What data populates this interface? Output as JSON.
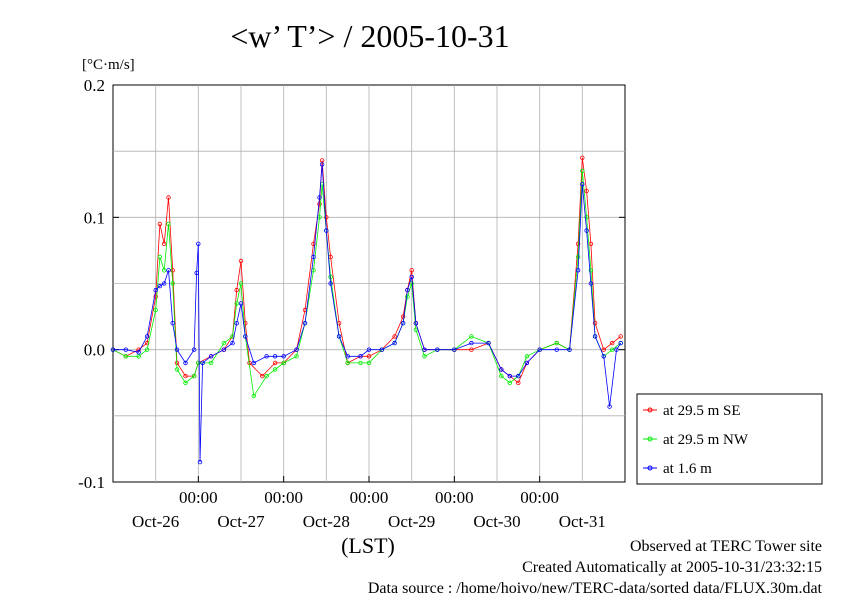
{
  "chart_data": {
    "type": "line",
    "title": "<w’ T’> / 2005-10-31",
    "ylabel": "[°C·m/s]",
    "xlabel": "(LST)",
    "ylim": [
      -0.1,
      0.2
    ],
    "y_ticks": [
      "0.2",
      "0.1",
      "0.0",
      "-0.1"
    ],
    "x_time_labels": [
      "00:00",
      "00:00",
      "00:00",
      "00:00",
      "00:00"
    ],
    "x_date_labels": [
      "Oct-26",
      "Oct-27",
      "Oct-28",
      "Oct-29",
      "Oct-30",
      "Oct-31"
    ],
    "xlim_days": [
      25.0,
      31.0
    ],
    "grid": true,
    "legend_position": "right",
    "series": [
      {
        "name": "at 29.5 m SE",
        "color": "#ff0000",
        "points": [
          [
            25.0,
            0.0
          ],
          [
            25.15,
            -0.005
          ],
          [
            25.3,
            0.0
          ],
          [
            25.4,
            0.005
          ],
          [
            25.5,
            0.04
          ],
          [
            25.55,
            0.095
          ],
          [
            25.6,
            0.08
          ],
          [
            25.65,
            0.115
          ],
          [
            25.7,
            0.06
          ],
          [
            25.75,
            -0.01
          ],
          [
            25.85,
            -0.02
          ],
          [
            25.95,
            -0.02
          ],
          [
            26.0,
            -0.01
          ],
          [
            26.15,
            -0.005
          ],
          [
            26.3,
            0.0
          ],
          [
            26.4,
            0.01
          ],
          [
            26.45,
            0.045
          ],
          [
            26.5,
            0.067
          ],
          [
            26.55,
            0.02
          ],
          [
            26.6,
            -0.01
          ],
          [
            26.75,
            -0.02
          ],
          [
            26.9,
            -0.01
          ],
          [
            27.0,
            -0.01
          ],
          [
            27.15,
            0.0
          ],
          [
            27.25,
            0.03
          ],
          [
            27.35,
            0.08
          ],
          [
            27.42,
            0.11
          ],
          [
            27.45,
            0.143
          ],
          [
            27.5,
            0.1
          ],
          [
            27.55,
            0.07
          ],
          [
            27.65,
            0.02
          ],
          [
            27.75,
            -0.01
          ],
          [
            27.9,
            -0.005
          ],
          [
            28.0,
            -0.005
          ],
          [
            28.15,
            0.0
          ],
          [
            28.3,
            0.01
          ],
          [
            28.4,
            0.025
          ],
          [
            28.45,
            0.045
          ],
          [
            28.5,
            0.06
          ],
          [
            28.55,
            0.02
          ],
          [
            28.65,
            0.0
          ],
          [
            28.8,
            0.0
          ],
          [
            29.0,
            0.0
          ],
          [
            29.2,
            0.0
          ],
          [
            29.4,
            0.005
          ],
          [
            29.55,
            -0.015
          ],
          [
            29.65,
            -0.02
          ],
          [
            29.75,
            -0.025
          ],
          [
            29.85,
            -0.01
          ],
          [
            30.0,
            0.0
          ],
          [
            30.2,
            0.005
          ],
          [
            30.35,
            0.0
          ],
          [
            30.45,
            0.08
          ],
          [
            30.5,
            0.145
          ],
          [
            30.55,
            0.12
          ],
          [
            30.6,
            0.08
          ],
          [
            30.65,
            0.02
          ],
          [
            30.75,
            0.0
          ],
          [
            30.85,
            0.005
          ],
          [
            30.95,
            0.01
          ]
        ]
      },
      {
        "name": "at 29.5 m NW",
        "color": "#00ee00",
        "points": [
          [
            25.0,
            0.0
          ],
          [
            25.15,
            -0.005
          ],
          [
            25.3,
            -0.005
          ],
          [
            25.4,
            0.0
          ],
          [
            25.5,
            0.03
          ],
          [
            25.55,
            0.07
          ],
          [
            25.6,
            0.06
          ],
          [
            25.65,
            0.095
          ],
          [
            25.7,
            0.05
          ],
          [
            25.75,
            -0.015
          ],
          [
            25.85,
            -0.025
          ],
          [
            25.95,
            -0.02
          ],
          [
            26.0,
            -0.01
          ],
          [
            26.15,
            -0.01
          ],
          [
            26.3,
            0.005
          ],
          [
            26.4,
            0.01
          ],
          [
            26.45,
            0.035
          ],
          [
            26.5,
            0.05
          ],
          [
            26.55,
            0.01
          ],
          [
            26.65,
            -0.035
          ],
          [
            26.8,
            -0.02
          ],
          [
            26.9,
            -0.015
          ],
          [
            27.0,
            -0.01
          ],
          [
            27.15,
            -0.005
          ],
          [
            27.25,
            0.02
          ],
          [
            27.35,
            0.06
          ],
          [
            27.42,
            0.1
          ],
          [
            27.45,
            0.125
          ],
          [
            27.5,
            0.09
          ],
          [
            27.55,
            0.055
          ],
          [
            27.65,
            0.01
          ],
          [
            27.75,
            -0.01
          ],
          [
            27.9,
            -0.01
          ],
          [
            28.0,
            -0.01
          ],
          [
            28.15,
            0.0
          ],
          [
            28.3,
            0.005
          ],
          [
            28.4,
            0.02
          ],
          [
            28.45,
            0.04
          ],
          [
            28.5,
            0.05
          ],
          [
            28.55,
            0.015
          ],
          [
            28.65,
            -0.005
          ],
          [
            28.8,
            0.0
          ],
          [
            29.0,
            0.0
          ],
          [
            29.2,
            0.01
          ],
          [
            29.4,
            0.005
          ],
          [
            29.55,
            -0.02
          ],
          [
            29.65,
            -0.025
          ],
          [
            29.75,
            -0.02
          ],
          [
            29.85,
            -0.005
          ],
          [
            30.0,
            0.0
          ],
          [
            30.2,
            0.005
          ],
          [
            30.35,
            0.0
          ],
          [
            30.45,
            0.07
          ],
          [
            30.5,
            0.135
          ],
          [
            30.55,
            0.1
          ],
          [
            30.6,
            0.06
          ],
          [
            30.65,
            0.01
          ],
          [
            30.75,
            -0.005
          ],
          [
            30.85,
            0.0
          ],
          [
            30.95,
            0.005
          ]
        ]
      },
      {
        "name": "at 1.6 m",
        "color": "#0000ff",
        "points": [
          [
            25.0,
            0.0
          ],
          [
            25.15,
            0.0
          ],
          [
            25.3,
            -0.002
          ],
          [
            25.4,
            0.01
          ],
          [
            25.5,
            0.045
          ],
          [
            25.55,
            0.048
          ],
          [
            25.6,
            0.05
          ],
          [
            25.65,
            0.06
          ],
          [
            25.7,
            0.02
          ],
          [
            25.75,
            0.0
          ],
          [
            25.85,
            -0.01
          ],
          [
            25.95,
            0.0
          ],
          [
            25.98,
            0.058
          ],
          [
            26.0,
            0.08
          ],
          [
            26.02,
            -0.085
          ],
          [
            26.05,
            -0.01
          ],
          [
            26.15,
            -0.005
          ],
          [
            26.3,
            0.0
          ],
          [
            26.4,
            0.005
          ],
          [
            26.45,
            0.02
          ],
          [
            26.5,
            0.035
          ],
          [
            26.55,
            0.01
          ],
          [
            26.65,
            -0.01
          ],
          [
            26.8,
            -0.005
          ],
          [
            26.9,
            -0.005
          ],
          [
            27.0,
            -0.005
          ],
          [
            27.15,
            0.0
          ],
          [
            27.25,
            0.02
          ],
          [
            27.35,
            0.07
          ],
          [
            27.42,
            0.115
          ],
          [
            27.45,
            0.14
          ],
          [
            27.5,
            0.09
          ],
          [
            27.55,
            0.05
          ],
          [
            27.65,
            0.01
          ],
          [
            27.75,
            -0.005
          ],
          [
            27.9,
            -0.005
          ],
          [
            28.0,
            0.0
          ],
          [
            28.15,
            0.0
          ],
          [
            28.3,
            0.005
          ],
          [
            28.4,
            0.02
          ],
          [
            28.45,
            0.045
          ],
          [
            28.5,
            0.055
          ],
          [
            28.55,
            0.02
          ],
          [
            28.65,
            0.0
          ],
          [
            28.8,
            0.0
          ],
          [
            29.0,
            0.0
          ],
          [
            29.2,
            0.005
          ],
          [
            29.4,
            0.005
          ],
          [
            29.55,
            -0.015
          ],
          [
            29.65,
            -0.02
          ],
          [
            29.75,
            -0.02
          ],
          [
            29.85,
            -0.01
          ],
          [
            30.0,
            0.0
          ],
          [
            30.2,
            0.0
          ],
          [
            30.35,
            0.0
          ],
          [
            30.45,
            0.06
          ],
          [
            30.5,
            0.125
          ],
          [
            30.55,
            0.09
          ],
          [
            30.6,
            0.05
          ],
          [
            30.65,
            0.01
          ],
          [
            30.75,
            -0.005
          ],
          [
            30.82,
            -0.043
          ],
          [
            30.9,
            0.0
          ],
          [
            30.95,
            0.005
          ]
        ]
      }
    ]
  },
  "footer": {
    "line1": "Observed at TERC Tower site",
    "line2": "Created Automatically at 2005-10-31/23:32:15",
    "line3": "Data source : /home/hoivo/new/TERC-data/sorted  data/FLUX.30m.dat"
  }
}
